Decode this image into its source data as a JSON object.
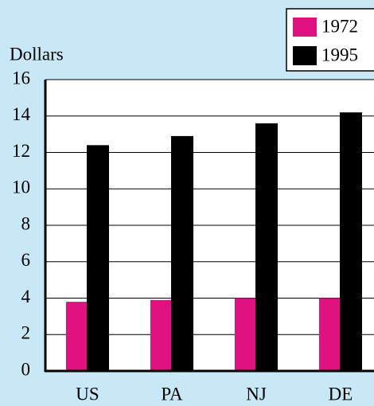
{
  "chart_data": {
    "type": "bar",
    "y_label": "Dollars",
    "categories": [
      "US",
      "PA",
      "NJ",
      "DE"
    ],
    "series": [
      {
        "name": "1972",
        "color": "#e0127f",
        "values": [
          3.8,
          3.9,
          4.0,
          4.0
        ]
      },
      {
        "name": "1995",
        "color": "#000000",
        "values": [
          12.4,
          12.9,
          13.6,
          14.2
        ]
      }
    ],
    "ylim": [
      0,
      16
    ],
    "yticks": [
      0,
      2,
      4,
      6,
      8,
      10,
      12,
      14,
      16
    ],
    "grid": true
  }
}
